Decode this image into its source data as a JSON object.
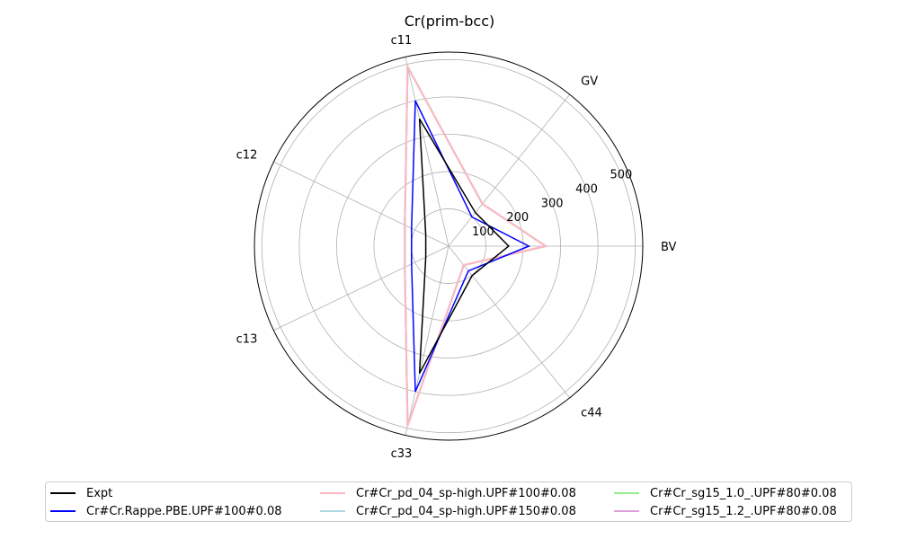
{
  "chart_data": {
    "type": "radar",
    "title": "Cr(prim-bcc)",
    "axes": [
      "BV",
      "GV",
      "c11",
      "c12",
      "c13",
      "c33",
      "c44"
    ],
    "r_ticks": [
      100,
      200,
      300,
      400,
      500
    ],
    "r_max": 520,
    "grid": true,
    "legend_position": "bottom",
    "series": [
      {
        "name": "Expt",
        "color": "#000000",
        "values": [
          161,
          115,
          350,
          68,
          68,
          350,
          101
        ]
      },
      {
        "name": "Cr#Cr.Rappe.PBE.UPF#100#0.08",
        "color": "#0000ff",
        "values": [
          215,
          100,
          400,
          110,
          110,
          400,
          85
        ]
      },
      {
        "name": "Cr#Cr_pd_04_sp-high.UPF#100#0.08",
        "color": "#ffb6c1",
        "values": [
          260,
          145,
          493,
          130,
          130,
          493,
          65
        ]
      },
      {
        "name": "Cr#Cr_pd_04_sp-high.UPF#150#0.08",
        "color": "#add8e6",
        "values": [
          260,
          145,
          493,
          130,
          130,
          493,
          65
        ]
      },
      {
        "name": "Cr#Cr_sg15_1.0_.UPF#80#0.08",
        "color": "#90ee90",
        "values": [
          260,
          145,
          493,
          130,
          130,
          493,
          65
        ]
      },
      {
        "name": "Cr#Cr_sg15_1.2_.UPF#80#0.08",
        "color": "#dda0dd",
        "values": [
          260,
          145,
          493,
          130,
          130,
          493,
          65
        ]
      }
    ]
  }
}
